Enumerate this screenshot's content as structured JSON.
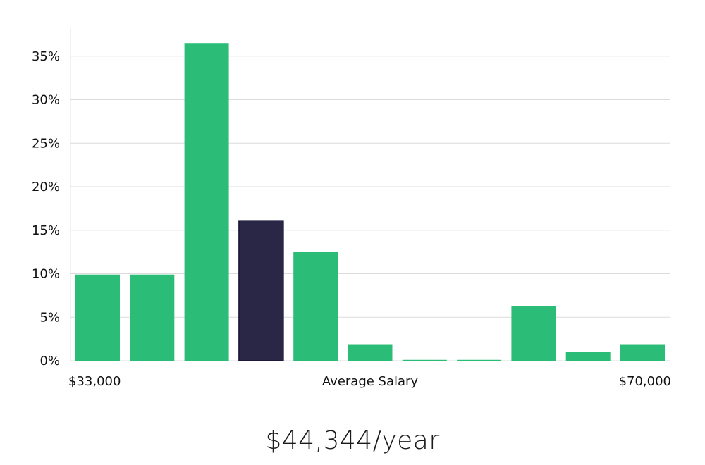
{
  "colors": {
    "bar": "#2bbd78",
    "highlight": "#292745",
    "highlight_border": "#18163a"
  },
  "chart_data": {
    "type": "bar",
    "title": "",
    "xlabel": "Average Salary",
    "ylabel": "",
    "x_min_label": "$33,000",
    "x_max_label": "$70,000",
    "y_ticks": [
      "0%",
      "5%",
      "10%",
      "15%",
      "20%",
      "25%",
      "30%",
      "35%"
    ],
    "ylim": [
      0,
      38
    ],
    "values": [
      9.9,
      9.9,
      36.5,
      16.1,
      12.5,
      1.9,
      0.1,
      0.1,
      6.3,
      1.0,
      1.9
    ],
    "highlight_index": 3
  },
  "caption": "$44,344/year"
}
